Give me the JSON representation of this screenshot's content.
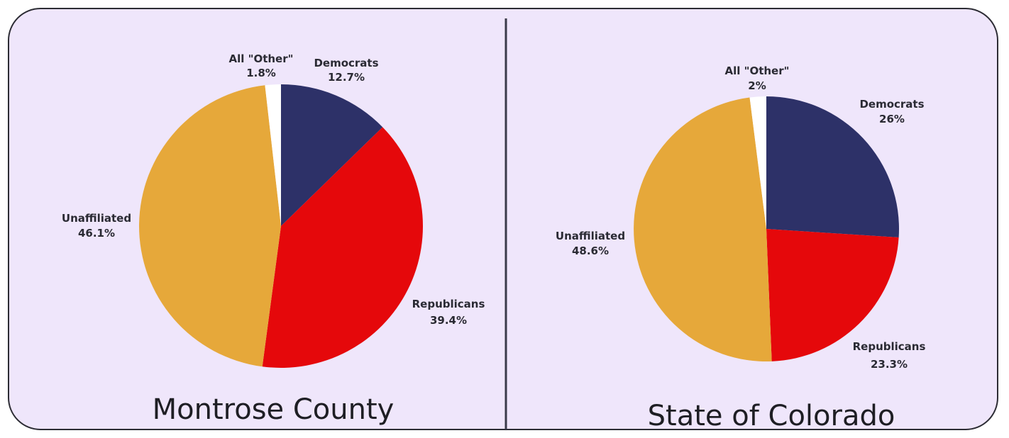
{
  "colors": {
    "background": "#efe6fb",
    "democrats": "#2d3168",
    "republicans": "#e5080b",
    "unaffiliated": "#e6a83a",
    "other": "#ffffff"
  },
  "chart_data": [
    {
      "type": "pie",
      "title": "Montrose County",
      "slices": [
        {
          "name": "Democrats",
          "value": 12.7,
          "label": "12.7%",
          "color": "#2d3168"
        },
        {
          "name": "Republicans",
          "value": 39.4,
          "label": "39.4%",
          "color": "#e5080b"
        },
        {
          "name": "Unaffiliated",
          "value": 46.1,
          "label": "46.1%",
          "color": "#e6a83a"
        },
        {
          "name": "All \"Other\"",
          "value": 1.8,
          "label": "1.8%",
          "color": "#ffffff"
        }
      ]
    },
    {
      "type": "pie",
      "title": "State of Colorado",
      "slices": [
        {
          "name": "Democrats",
          "value": 26,
          "label": "26%",
          "color": "#2d3168"
        },
        {
          "name": "Republicans",
          "value": 23.3,
          "label": "23.3%",
          "color": "#e5080b"
        },
        {
          "name": "Unaffiliated",
          "value": 48.6,
          "label": "48.6%",
          "color": "#e6a83a"
        },
        {
          "name": "All \"Other\"",
          "value": 2,
          "label": "2%",
          "color": "#ffffff"
        }
      ]
    }
  ]
}
